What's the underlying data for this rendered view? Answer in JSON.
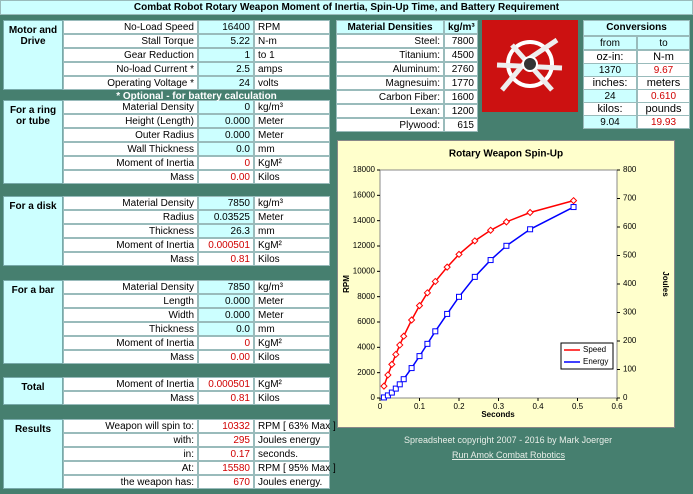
{
  "title": "Combat Robot Rotary Weapon Moment of Inertia, Spin-Up Time, and Battery Requirement",
  "sections": [
    {
      "label": "Motor and Drive",
      "rows": [
        [
          "No-Load Speed",
          "16400",
          "RPM"
        ],
        [
          "Stall Torque",
          "5.22",
          "N-m"
        ],
        [
          "Gear Reduction",
          "1",
          "to 1"
        ],
        [
          "No-load Current *",
          "2.5",
          "amps"
        ],
        [
          "Operating Voltage *",
          "24",
          "volts"
        ]
      ]
    },
    {
      "label": "For a ring or tube",
      "rows": [
        [
          "Material Density",
          "0",
          "kg/m³"
        ],
        [
          "Height (Length)",
          "0.000",
          "Meter"
        ],
        [
          "Outer Radius",
          "0.000",
          "Meter"
        ],
        [
          "Wall Thickness",
          "0.0",
          "mm"
        ],
        [
          "Moment of Inertia",
          "0",
          "KgM²"
        ],
        [
          "Mass",
          "0.00",
          "Kilos"
        ]
      ]
    },
    {
      "label": "For a disk",
      "rows": [
        [
          "Material Density",
          "7850",
          "kg/m³"
        ],
        [
          "Radius",
          "0.03525",
          "Meter"
        ],
        [
          "Thickness",
          "26.3",
          "mm"
        ],
        [
          "Moment of Inertia",
          "0.000501",
          "KgM²"
        ],
        [
          "Mass",
          "0.81",
          "Kilos"
        ]
      ]
    },
    {
      "label": "For a bar",
      "rows": [
        [
          "Material Density",
          "7850",
          "kg/m³"
        ],
        [
          "Length",
          "0.000",
          "Meter"
        ],
        [
          "Width",
          "0.000",
          "Meter"
        ],
        [
          "Thickness",
          "0.0",
          "mm"
        ],
        [
          "Moment of Inertia",
          "0",
          "KgM²"
        ],
        [
          "Mass",
          "0.00",
          "Kilos"
        ]
      ]
    },
    {
      "label": "Total",
      "rows": [
        [
          "Moment of Inertia",
          "0.000501",
          "KgM²"
        ],
        [
          "Mass",
          "0.81",
          "Kilos"
        ]
      ]
    },
    {
      "label": "Results",
      "rows": [
        [
          "Weapon will spin to:",
          "10332",
          "RPM [ 63% Max ]"
        ],
        [
          "with:",
          "295",
          "Joules energy"
        ],
        [
          "in:",
          "0.17",
          "seconds."
        ],
        [
          "At:",
          "15580",
          "RPM [ 95% Max ]"
        ],
        [
          "the weapon has:",
          "670",
          "Joules energy."
        ]
      ]
    }
  ],
  "optional_note": "* Optional - for battery calculation",
  "materials": {
    "headers": [
      "Material Densities",
      "kg/m³"
    ],
    "rows": [
      [
        "Steel:",
        "7800"
      ],
      [
        "Titanium:",
        "4500"
      ],
      [
        "Aluminum:",
        "2760"
      ],
      [
        "Magnesuim:",
        "1770"
      ],
      [
        "Carbon Fiber:",
        "1600"
      ],
      [
        "Lexan:",
        "1200"
      ],
      [
        "Plywood:",
        "615"
      ]
    ]
  },
  "conversions": {
    "title": "Conversions",
    "headers": [
      "from",
      "to"
    ],
    "pairs": [
      {
        "units": [
          "oz-in:",
          "N-m"
        ],
        "values": [
          "1370",
          "9.67"
        ]
      },
      {
        "units": [
          "inches:",
          "meters"
        ],
        "values": [
          "24",
          "0.610"
        ]
      },
      {
        "units": [
          "kilos:",
          "pounds"
        ],
        "values": [
          "9.04",
          "19.93"
        ]
      }
    ]
  },
  "footer": {
    "copyright": "Spreadsheet copyright 2007 - 2016 by Mark Joerger",
    "link": "Run Amok Combat Robotics"
  },
  "chart_data": {
    "type": "line",
    "title": "Rotary Weapon Spin-Up",
    "x_label": "Seconds",
    "y_label": "RPM",
    "y2_label": "Joules",
    "x": [
      0.01,
      0.02,
      0.03,
      0.04,
      0.05,
      0.06,
      0.08,
      0.1,
      0.12,
      0.14,
      0.17,
      0.2,
      0.24,
      0.28,
      0.32,
      0.38,
      0.49
    ],
    "series": [
      {
        "name": "Speed",
        "color": "#ff0000",
        "marker": "diamond",
        "values": [
          936,
          1820,
          2654,
          3439,
          4180,
          4878,
          6157,
          7293,
          8304,
          9202,
          10332,
          11342,
          12403,
          13241,
          13904,
          14645,
          15580
        ]
      },
      {
        "name": "Energy",
        "color": "#0000ff",
        "marker": "square",
        "axis": "y2",
        "values": [
          2,
          9,
          19,
          33,
          48,
          66,
          105,
          147,
          190,
          234,
          295,
          355,
          425,
          484,
          534,
          592,
          670
        ]
      }
    ],
    "xlim": [
      0,
      0.6
    ],
    "xticks": [
      0,
      0.1,
      0.2,
      0.3,
      0.4,
      0.5,
      0.6
    ],
    "ylim": [
      0,
      18000
    ],
    "yticks": [
      0,
      2000,
      4000,
      6000,
      8000,
      10000,
      12000,
      14000,
      16000,
      18000
    ],
    "y2lim": [
      0,
      800
    ],
    "y2ticks": [
      0,
      100,
      200,
      300,
      400,
      500,
      600,
      700,
      800
    ],
    "grid": false,
    "legend": "lower-right"
  }
}
